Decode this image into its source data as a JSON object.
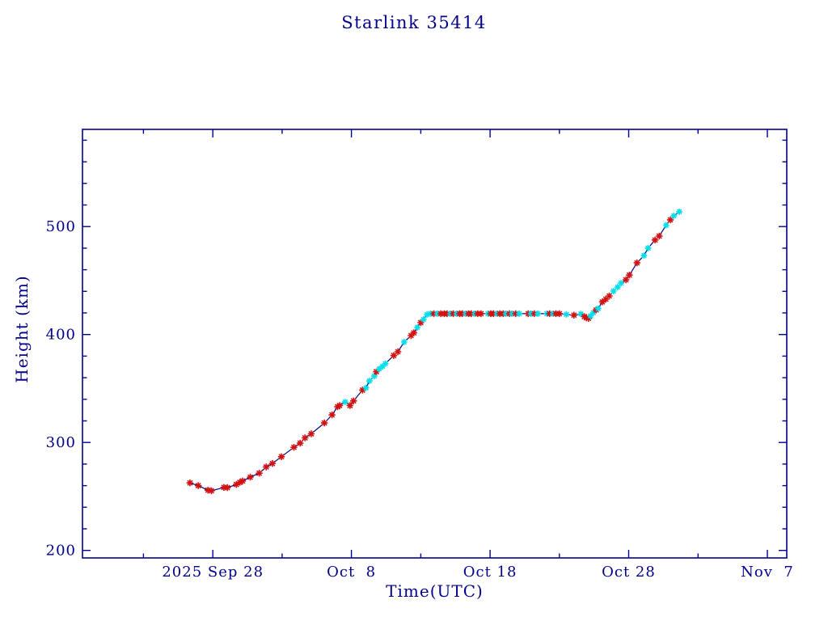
{
  "title": "Starlink 35414",
  "colors": {
    "text": "#00008B",
    "axis": "#00008B",
    "line": "#00008B",
    "marker_red": "#D01212",
    "marker_cyan": "#00DFEA",
    "background": "#FFFFFF"
  },
  "chart_data": {
    "type": "line",
    "title": "Starlink 35414",
    "xlabel": "Time(UTC)",
    "ylabel": "Height (km)",
    "x_unit": "days relative to 2025 Sep 28 (UTC)",
    "xlim": [
      -9.4,
      41.4
    ],
    "ylim": [
      193,
      590
    ],
    "grid": false,
    "legend": "none",
    "x_major_ticks": [
      {
        "day": 0,
        "label": "2025 Sep 28"
      },
      {
        "day": 10,
        "label": "Oct  8"
      },
      {
        "day": 20,
        "label": "Oct 18"
      },
      {
        "day": 30,
        "label": "Oct 28"
      },
      {
        "day": 40,
        "label": "Nov  7"
      }
    ],
    "x_minor_ticks_days": [
      -5,
      5,
      15,
      25,
      35
    ],
    "y_major_ticks": [
      {
        "km": 200,
        "label": "200"
      },
      {
        "km": 300,
        "label": "300"
      },
      {
        "km": 400,
        "label": "400"
      },
      {
        "km": 500,
        "label": "500"
      }
    ],
    "y_minor_ticks_km": [
      220,
      240,
      260,
      280,
      320,
      340,
      360,
      380,
      420,
      440,
      460,
      480,
      520,
      540,
      560,
      580
    ],
    "marker_style": "asterisk",
    "series_description": "Satellite height vs time; red and cyan asterisk markers joined by navy line; climb from ~256 km, plateau at ~419 km (Oct 13 - Oct 25), then climb to ~514 km",
    "points": [
      [
        -1.65,
        262.5,
        "r"
      ],
      [
        -1.05,
        260.0,
        "r"
      ],
      [
        -0.35,
        255.8,
        "r"
      ],
      [
        -0.1,
        255.2,
        "r"
      ],
      [
        0.8,
        258.3,
        "r"
      ],
      [
        1.05,
        258.1,
        "r"
      ],
      [
        1.7,
        261.0,
        "r"
      ],
      [
        1.95,
        263.0,
        "r"
      ],
      [
        2.15,
        264.3,
        "r"
      ],
      [
        2.7,
        267.8,
        "r"
      ],
      [
        3.35,
        271.5,
        "r"
      ],
      [
        3.85,
        277.3,
        "r"
      ],
      [
        4.3,
        280.5,
        "r"
      ],
      [
        4.95,
        286.8,
        "r"
      ],
      [
        5.85,
        295.5,
        "r"
      ],
      [
        6.3,
        299.3,
        "r"
      ],
      [
        6.65,
        304.2,
        "r"
      ],
      [
        7.1,
        308.0,
        "r"
      ],
      [
        8.05,
        318.0,
        "r"
      ],
      [
        8.6,
        325.5,
        "r"
      ],
      [
        9.0,
        333.0,
        "r"
      ],
      [
        9.15,
        334.2,
        "r"
      ],
      [
        9.55,
        337.5,
        "c"
      ],
      [
        9.9,
        334.2,
        "r"
      ],
      [
        10.15,
        338.5,
        "r"
      ],
      [
        10.8,
        348.5,
        "r"
      ],
      [
        11.05,
        350.5,
        "c"
      ],
      [
        11.3,
        357.0,
        "c"
      ],
      [
        11.65,
        361.5,
        "c"
      ],
      [
        11.8,
        365.5,
        "r"
      ],
      [
        12.0,
        368.0,
        "c"
      ],
      [
        12.25,
        370.5,
        "c"
      ],
      [
        12.45,
        373.0,
        "c"
      ],
      [
        13.05,
        380.5,
        "r"
      ],
      [
        13.35,
        384.0,
        "r"
      ],
      [
        13.8,
        393.0,
        "c"
      ],
      [
        14.3,
        399.0,
        "r"
      ],
      [
        14.5,
        401.5,
        "r"
      ],
      [
        14.75,
        406.5,
        "c"
      ],
      [
        15.0,
        411.0,
        "r"
      ],
      [
        15.2,
        414.0,
        "c"
      ],
      [
        15.45,
        418.5,
        "c"
      ],
      [
        15.7,
        419.3,
        "c"
      ],
      [
        15.95,
        419.3,
        "r"
      ],
      [
        16.2,
        419.3,
        "c"
      ],
      [
        16.45,
        419.3,
        "r"
      ],
      [
        16.7,
        419.3,
        "r"
      ],
      [
        16.9,
        419.3,
        "r"
      ],
      [
        17.15,
        419.3,
        "c"
      ],
      [
        17.35,
        419.3,
        "r"
      ],
      [
        17.6,
        419.3,
        "c"
      ],
      [
        17.8,
        419.3,
        "r"
      ],
      [
        18.0,
        419.3,
        "r"
      ],
      [
        18.25,
        419.3,
        "c"
      ],
      [
        18.45,
        419.3,
        "r"
      ],
      [
        18.65,
        419.3,
        "r"
      ],
      [
        18.9,
        419.3,
        "c"
      ],
      [
        19.1,
        419.3,
        "r"
      ],
      [
        19.35,
        419.3,
        "r"
      ],
      [
        19.85,
        419.3,
        "c"
      ],
      [
        20.05,
        419.3,
        "r"
      ],
      [
        20.25,
        419.3,
        "r"
      ],
      [
        20.5,
        419.3,
        "c"
      ],
      [
        20.7,
        419.3,
        "r"
      ],
      [
        20.95,
        419.3,
        "r"
      ],
      [
        21.15,
        419.3,
        "c"
      ],
      [
        21.4,
        419.3,
        "r"
      ],
      [
        21.6,
        419.3,
        "c"
      ],
      [
        21.85,
        419.3,
        "r"
      ],
      [
        22.1,
        419.3,
        "c"
      ],
      [
        22.75,
        419.3,
        "r"
      ],
      [
        22.95,
        419.3,
        "c"
      ],
      [
        23.2,
        419.3,
        "r"
      ],
      [
        23.45,
        419.3,
        "c"
      ],
      [
        24.1,
        419.3,
        "c"
      ],
      [
        24.3,
        419.3,
        "r"
      ],
      [
        24.55,
        419.3,
        "c"
      ],
      [
        24.75,
        419.3,
        "r"
      ],
      [
        25.0,
        419.3,
        "r"
      ],
      [
        25.5,
        418.6,
        "c"
      ],
      [
        26.05,
        417.9,
        "r"
      ],
      [
        26.55,
        419.0,
        "c"
      ],
      [
        26.8,
        416.6,
        "r"
      ],
      [
        26.95,
        415.4,
        "r"
      ],
      [
        27.1,
        414.9,
        "r"
      ],
      [
        27.25,
        417.2,
        "c"
      ],
      [
        27.45,
        420.2,
        "c"
      ],
      [
        27.65,
        422.7,
        "r"
      ],
      [
        27.8,
        424.0,
        "c"
      ],
      [
        28.1,
        430.2,
        "r"
      ],
      [
        28.35,
        432.7,
        "r"
      ],
      [
        28.6,
        435.7,
        "r"
      ],
      [
        28.9,
        440.2,
        "c"
      ],
      [
        29.2,
        443.9,
        "c"
      ],
      [
        29.45,
        447.6,
        "c"
      ],
      [
        29.8,
        450.6,
        "r"
      ],
      [
        30.05,
        455.0,
        "r"
      ],
      [
        30.6,
        466.3,
        "r"
      ],
      [
        31.1,
        473.1,
        "c"
      ],
      [
        31.4,
        480.0,
        "c"
      ],
      [
        31.9,
        487.5,
        "r"
      ],
      [
        32.2,
        491.2,
        "r"
      ],
      [
        32.7,
        501.2,
        "c"
      ],
      [
        33.0,
        506.2,
        "r"
      ],
      [
        33.25,
        509.9,
        "c"
      ],
      [
        33.65,
        513.7,
        "c"
      ]
    ]
  }
}
